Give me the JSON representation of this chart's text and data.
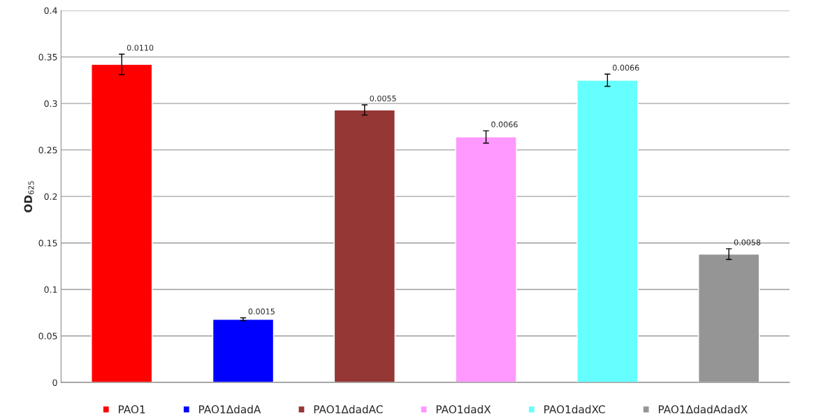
{
  "chart_data": {
    "type": "bar",
    "ylabel": "OD$_{625}$",
    "categories": [
      null,
      null,
      null,
      null,
      null,
      null
    ],
    "series": [
      {
        "name": "PAO1",
        "color": "#ff0000",
        "values": [
          0.342,
          null,
          null,
          null,
          null,
          null
        ],
        "errors": [
          0.011,
          null,
          null,
          null,
          null,
          null
        ]
      },
      {
        "name": "PAO1ΔdadA",
        "color": "#0000ff",
        "values": [
          null,
          0.068,
          null,
          null,
          null,
          null
        ],
        "errors": [
          null,
          0.0015,
          null,
          null,
          null,
          null
        ]
      },
      {
        "name": "PAO1ΔdadAC",
        "color": "#953735",
        "values": [
          null,
          null,
          0.293,
          null,
          null,
          null
        ],
        "errors": [
          null,
          null,
          0.0055,
          null,
          null,
          null
        ]
      },
      {
        "name": "PAO1dadX",
        "color": "#ff99ff",
        "values": [
          null,
          null,
          null,
          0.264,
          null,
          null
        ],
        "errors": [
          null,
          null,
          null,
          0.0066,
          null,
          null
        ]
      },
      {
        "name": "PAO1dadXC",
        "color": "#66ffff",
        "values": [
          null,
          null,
          null,
          null,
          0.325,
          null
        ],
        "errors": [
          null,
          null,
          null,
          null,
          0.0066,
          null
        ]
      },
      {
        "name": "PAO1ΔdadAdadX",
        "color": "#959595",
        "values": [
          null,
          null,
          null,
          null,
          null,
          0.138
        ],
        "errors": [
          null,
          null,
          null,
          null,
          null,
          0.0058
        ]
      }
    ],
    "annotations": [
      "0.0110",
      "0.0015",
      "0.0055",
      "0.0066",
      "0.0066",
      "0.0058"
    ],
    "ylim": [
      0,
      0.4
    ],
    "yticks": [
      0,
      0.05,
      0.1,
      0.15,
      0.2,
      0.25,
      0.3,
      0.35,
      0.4
    ],
    "grid": "y",
    "legend": "bottom",
    "tick_labels": "y"
  }
}
